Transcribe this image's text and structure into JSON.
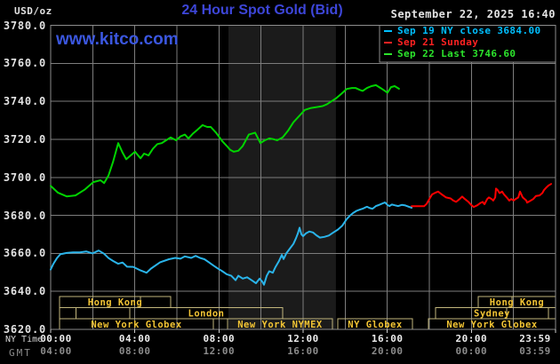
{
  "header": {
    "units": "USD/oz",
    "title": "24 Hour Spot Gold (Bid)",
    "datetime": "September 22, 2025 16:40",
    "watermark": "www.kitco.com"
  },
  "footer": {
    "ny_time_label": "NY Time",
    "gmt_label": "GMT"
  },
  "legend": {
    "entries": [
      {
        "label": "Sep 19 NY close 3684.00",
        "color": "#00bfff"
      },
      {
        "label": "Sep 21 Sunday",
        "color": "#ff2222"
      },
      {
        "label": "Sep 22 Last 3746.60",
        "color": "#2ce42c"
      }
    ]
  },
  "colors": {
    "background": "#000000",
    "grid": "#7d7d7d",
    "border": "#8d8d8d",
    "title_blue": "#3d46d9",
    "kitco_blue": "#3b57e0",
    "session_border": "#c2b67c",
    "session_text": "#f2c434",
    "band": "#1b1b1b",
    "tick": "#cccccc"
  },
  "chart_data": {
    "type": "line",
    "title": "24 Hour Spot Gold (Bid)",
    "ylabel": "USD/oz",
    "xlabel": "NY Time / GMT",
    "xlim": [
      0,
      24
    ],
    "ylim": [
      3620,
      3780
    ],
    "grid": "on",
    "legend_position": "top-right",
    "y_ticks": [
      {
        "v": 3780,
        "label": "3780.0"
      },
      {
        "v": 3760,
        "label": "3760.0"
      },
      {
        "v": 3740,
        "label": "3740.0"
      },
      {
        "v": 3720,
        "label": "3720.0"
      },
      {
        "v": 3700,
        "label": "3700.0"
      },
      {
        "v": 3680,
        "label": "3680.0"
      },
      {
        "v": 3660,
        "label": "3660.0"
      },
      {
        "v": 3640,
        "label": "3640.0"
      },
      {
        "v": 3620,
        "label": "3620.0"
      }
    ],
    "x_ticks": [
      {
        "h": 0,
        "ny": "00:00",
        "gmt": "04:00"
      },
      {
        "h": 4,
        "ny": "04:00",
        "gmt": "08:00"
      },
      {
        "h": 8,
        "ny": "08:00",
        "gmt": "12:00"
      },
      {
        "h": 12,
        "ny": "12:00",
        "gmt": "16:00"
      },
      {
        "h": 16,
        "ny": "16:00",
        "gmt": "20:00"
      },
      {
        "h": 20,
        "ny": "20:00",
        "gmt": "00:00"
      },
      {
        "h": 24,
        "ny": "23:59",
        "gmt": "03:59"
      }
    ],
    "band": {
      "from_hour": 8.45,
      "to_hour": 13.56,
      "color": "#1b1b1b"
    },
    "sessions": [
      {
        "row": 1,
        "label": "Hong Kong",
        "x1": 67,
        "x2": 192,
        "dividers": [
          158
        ]
      },
      {
        "row": 1,
        "label": "Hong Kong",
        "x1": 538,
        "x2": 625,
        "dividers": [
          576
        ]
      },
      {
        "row": 2,
        "label": "",
        "x1": 67,
        "x2": 85.5
      },
      {
        "row": 2,
        "label": "",
        "x1": 85.5,
        "x2": 146
      },
      {
        "row": 2,
        "label": "London",
        "x1": 146,
        "x2": 318
      },
      {
        "row": 2,
        "label": "Sydney",
        "x1": 490,
        "x2": 617,
        "dividers": [
          570
        ]
      },
      {
        "row": 3,
        "label": "New York Globex",
        "x1": 67,
        "x2": 240
      },
      {
        "row": 3,
        "label": "New York NYMEX",
        "x1": 256,
        "x2": 374
      },
      {
        "row": 3,
        "label": "NY Globex",
        "x1": 380,
        "x2": 464
      },
      {
        "row": 3,
        "label": "New York Globex",
        "x1": 482,
        "x2": 625
      }
    ],
    "series": [
      {
        "id": "sep22-last",
        "name": "Sep 22 Last 3746.60",
        "color": "#00d400",
        "points": [
          [
            0,
            3695.5
          ],
          [
            0.34,
            3692
          ],
          [
            0.76,
            3690
          ],
          [
            1.18,
            3690.5
          ],
          [
            1.61,
            3693.5
          ],
          [
            2.03,
            3697.5
          ],
          [
            2.37,
            3698.5
          ],
          [
            2.54,
            3697
          ],
          [
            2.75,
            3701
          ],
          [
            2.96,
            3708
          ],
          [
            3.21,
            3718
          ],
          [
            3.42,
            3713
          ],
          [
            3.59,
            3709.5
          ],
          [
            3.8,
            3711.5
          ],
          [
            4.01,
            3713.5
          ],
          [
            4.27,
            3710
          ],
          [
            4.44,
            3712.5
          ],
          [
            4.65,
            3711.5
          ],
          [
            4.86,
            3715
          ],
          [
            5.07,
            3717.5
          ],
          [
            5.28,
            3718
          ],
          [
            5.49,
            3719.5
          ],
          [
            5.7,
            3721
          ],
          [
            5.96,
            3719.5
          ],
          [
            6.17,
            3721.5
          ],
          [
            6.38,
            3722.5
          ],
          [
            6.55,
            3720.5
          ],
          [
            6.76,
            3723
          ],
          [
            6.97,
            3725
          ],
          [
            7.22,
            3727.5
          ],
          [
            7.44,
            3726.5
          ],
          [
            7.61,
            3726.5
          ],
          [
            7.86,
            3723.5
          ],
          [
            8.16,
            3719
          ],
          [
            8.37,
            3716.5
          ],
          [
            8.53,
            3714.5
          ],
          [
            8.7,
            3713.5
          ],
          [
            8.92,
            3714
          ],
          [
            9.13,
            3716.5
          ],
          [
            9.42,
            3722.5
          ],
          [
            9.72,
            3723.5
          ],
          [
            9.97,
            3718
          ],
          [
            10.18,
            3719.5
          ],
          [
            10.39,
            3720.5
          ],
          [
            10.61,
            3720
          ],
          [
            10.77,
            3719.5
          ],
          [
            11.03,
            3721
          ],
          [
            11.28,
            3724.5
          ],
          [
            11.54,
            3729
          ],
          [
            11.79,
            3732
          ],
          [
            12.08,
            3735.5
          ],
          [
            12.38,
            3736.5
          ],
          [
            12.68,
            3737
          ],
          [
            12.93,
            3737.5
          ],
          [
            13.14,
            3738.5
          ],
          [
            13.35,
            3740
          ],
          [
            13.56,
            3741.5
          ],
          [
            13.82,
            3744
          ],
          [
            14.07,
            3746.5
          ],
          [
            14.32,
            3747
          ],
          [
            14.49,
            3747
          ],
          [
            14.7,
            3746
          ],
          [
            14.83,
            3745.5
          ],
          [
            15.04,
            3747
          ],
          [
            15.25,
            3748
          ],
          [
            15.46,
            3748.5
          ],
          [
            15.68,
            3747
          ],
          [
            15.89,
            3745.5
          ],
          [
            16.01,
            3744.5
          ],
          [
            16.18,
            3747.5
          ],
          [
            16.35,
            3748
          ],
          [
            16.56,
            3746.6
          ]
        ]
      },
      {
        "id": "sep19-ny-close",
        "name": "Sep 19 NY close 3684.00",
        "color": "#2ab4ea",
        "points": [
          [
            0,
            3651.5
          ],
          [
            0.13,
            3654.5
          ],
          [
            0.3,
            3657.5
          ],
          [
            0.46,
            3659.5
          ],
          [
            0.76,
            3660.2
          ],
          [
            1.06,
            3660.5
          ],
          [
            1.39,
            3660.5
          ],
          [
            1.69,
            3661
          ],
          [
            1.99,
            3660
          ],
          [
            2.28,
            3661.5
          ],
          [
            2.54,
            3659.8
          ],
          [
            2.75,
            3657.5
          ],
          [
            2.96,
            3656
          ],
          [
            3.21,
            3654.5
          ],
          [
            3.42,
            3655.2
          ],
          [
            3.63,
            3653
          ],
          [
            3.93,
            3652.9
          ],
          [
            4.27,
            3651
          ],
          [
            4.56,
            3649.8
          ],
          [
            4.77,
            3652
          ],
          [
            5.2,
            3655.3
          ],
          [
            5.62,
            3656.9
          ],
          [
            5.92,
            3657.6
          ],
          [
            6.17,
            3657.2
          ],
          [
            6.38,
            3658.4
          ],
          [
            6.68,
            3657.6
          ],
          [
            6.89,
            3658.7
          ],
          [
            7.1,
            3657.6
          ],
          [
            7.31,
            3656.9
          ],
          [
            7.52,
            3655.3
          ],
          [
            7.73,
            3653.7
          ],
          [
            7.94,
            3652.1
          ],
          [
            8.16,
            3650.6
          ],
          [
            8.37,
            3649
          ],
          [
            8.58,
            3648.2
          ],
          [
            8.79,
            3645.9
          ],
          [
            8.92,
            3648.2
          ],
          [
            9.13,
            3646.7
          ],
          [
            9.34,
            3647.4
          ],
          [
            9.55,
            3645.9
          ],
          [
            9.76,
            3644.3
          ],
          [
            9.93,
            3646.7
          ],
          [
            10.06,
            3645.1
          ],
          [
            10.14,
            3643.5
          ],
          [
            10.27,
            3648.2
          ],
          [
            10.39,
            3650.6
          ],
          [
            10.56,
            3649.8
          ],
          [
            10.69,
            3652.9
          ],
          [
            10.86,
            3656.1
          ],
          [
            10.99,
            3659.2
          ],
          [
            11.07,
            3657
          ],
          [
            11.2,
            3660
          ],
          [
            11.37,
            3662.5
          ],
          [
            11.54,
            3665
          ],
          [
            11.66,
            3668
          ],
          [
            11.75,
            3670.5
          ],
          [
            11.83,
            3673.5
          ],
          [
            11.92,
            3670
          ],
          [
            12,
            3669
          ],
          [
            12.13,
            3670.5
          ],
          [
            12.3,
            3671.5
          ],
          [
            12.47,
            3671
          ],
          [
            12.63,
            3669.5
          ],
          [
            12.8,
            3668.3
          ],
          [
            13.01,
            3668.7
          ],
          [
            13.22,
            3669.4
          ],
          [
            13.44,
            3671
          ],
          [
            13.65,
            3672.5
          ],
          [
            13.86,
            3674.5
          ],
          [
            14.07,
            3678
          ],
          [
            14.24,
            3680
          ],
          [
            14.37,
            3681.2
          ],
          [
            14.53,
            3682.3
          ],
          [
            14.7,
            3683
          ],
          [
            14.83,
            3683.5
          ],
          [
            14.96,
            3684.2
          ],
          [
            15.04,
            3684.5
          ],
          [
            15.17,
            3683.8
          ],
          [
            15.3,
            3683.5
          ],
          [
            15.46,
            3684.9
          ],
          [
            15.59,
            3685.4
          ],
          [
            15.72,
            3686
          ],
          [
            15.89,
            3686.8
          ],
          [
            16.01,
            3685.5
          ],
          [
            16.1,
            3684.9
          ],
          [
            16.22,
            3685.7
          ],
          [
            16.35,
            3685.3
          ],
          [
            16.52,
            3684.9
          ],
          [
            16.69,
            3685.5
          ],
          [
            16.86,
            3685.2
          ],
          [
            17.03,
            3684.5
          ],
          [
            17.16,
            3684
          ]
        ]
      },
      {
        "id": "sep21-sunday",
        "name": "Sep 21 Sunday",
        "color": "#ff0000",
        "points": [
          [
            17.16,
            3684.8
          ],
          [
            17.45,
            3684.8
          ],
          [
            17.75,
            3684.8
          ],
          [
            17.87,
            3686
          ],
          [
            18,
            3688.6
          ],
          [
            18.13,
            3691
          ],
          [
            18.3,
            3692
          ],
          [
            18.42,
            3692.5
          ],
          [
            18.59,
            3691
          ],
          [
            18.8,
            3689.4
          ],
          [
            19.01,
            3688.9
          ],
          [
            19.14,
            3687.8
          ],
          [
            19.27,
            3687.1
          ],
          [
            19.44,
            3688.6
          ],
          [
            19.56,
            3689.9
          ],
          [
            19.69,
            3688.6
          ],
          [
            19.86,
            3687.1
          ],
          [
            19.99,
            3685.5
          ],
          [
            20.11,
            3684.4
          ],
          [
            20.28,
            3685.3
          ],
          [
            20.41,
            3686.4
          ],
          [
            20.54,
            3687.1
          ],
          [
            20.62,
            3685.8
          ],
          [
            20.75,
            3688.6
          ],
          [
            20.83,
            3689.4
          ],
          [
            20.96,
            3688.6
          ],
          [
            21.04,
            3687.8
          ],
          [
            21.13,
            3689.4
          ],
          [
            21.17,
            3694.1
          ],
          [
            21.25,
            3693.3
          ],
          [
            21.34,
            3691.7
          ],
          [
            21.46,
            3692.5
          ],
          [
            21.55,
            3691
          ],
          [
            21.68,
            3689.4
          ],
          [
            21.8,
            3687.8
          ],
          [
            21.89,
            3688.6
          ],
          [
            22.01,
            3687.8
          ],
          [
            22.1,
            3688.6
          ],
          [
            22.23,
            3689.4
          ],
          [
            22.31,
            3692.5
          ],
          [
            22.44,
            3689.4
          ],
          [
            22.61,
            3687.8
          ],
          [
            22.65,
            3686.7
          ],
          [
            22.82,
            3687.8
          ],
          [
            22.94,
            3688.6
          ],
          [
            23.07,
            3690.2
          ],
          [
            23.24,
            3690.5
          ],
          [
            23.37,
            3691.7
          ],
          [
            23.45,
            3693.3
          ],
          [
            23.58,
            3694.9
          ],
          [
            23.66,
            3695.7
          ],
          [
            23.79,
            3696.5
          ]
        ]
      }
    ]
  }
}
